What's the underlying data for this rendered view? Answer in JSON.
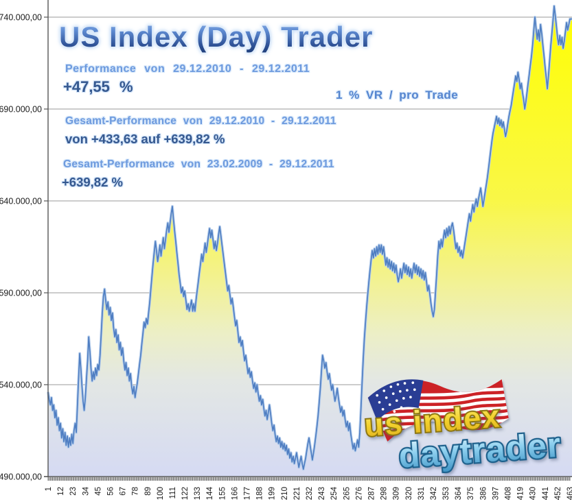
{
  "header": {
    "title": "US Index (Day) Trader",
    "performance_label": "Performance von 29.12.2010 - 29.12.2011",
    "performance_value": "+47,55 %",
    "risk_note": "1 % VR / pro Trade",
    "gesamt1_label": "Gesamt-Performance von 29.12.2010 - 29.12.2011",
    "gesamt1_value": "von +433,63 auf +639,82 %",
    "gesamt2_label": "Gesamt-Performance von 23.02.2009 - 29.12.2011",
    "gesamt2_value": "+639,82 %"
  },
  "logo": {
    "line1": "us index",
    "line2": "daytrader",
    "flag": "us-flag"
  },
  "colors": {
    "line": "#4f7ec2",
    "line_glow": "#b7cfec",
    "fill_top": "#ffff00",
    "fill_bottom": "#d5daf3",
    "grid": "#9a9a9a",
    "axis": "#555555",
    "tick_text": "#1a1a1a",
    "title_blue_dark": "#1d3c78",
    "title_blue_light": "#8fb2e6",
    "label_blue": "#6d9ade",
    "value_blue": "#35588f",
    "logo_gold": "#eec527",
    "logo_blue": "#6fbde4"
  },
  "chart_data": {
    "type": "area",
    "title": "US Index (Day) Trader",
    "xlabel": "",
    "ylabel": "",
    "grid": true,
    "legend": false,
    "x_start": 1,
    "x_end": 463,
    "x_tick_step": 11,
    "x_tick_labels": [
      "1",
      "12",
      "23",
      "34",
      "45",
      "56",
      "67",
      "78",
      "89",
      "100",
      "111",
      "122",
      "133",
      "144",
      "155",
      "166",
      "177",
      "188",
      "199",
      "210",
      "221",
      "232",
      "243",
      "254",
      "265",
      "276",
      "287",
      "298",
      "309",
      "320",
      "331",
      "342",
      "353",
      "364",
      "375",
      "386",
      "397",
      "408",
      "419",
      "430",
      "441",
      "452",
      "463"
    ],
    "y_tick_values": [
      740000,
      690000,
      640000,
      590000,
      540000,
      490000
    ],
    "y_tick_labels": [
      "740.000,00",
      "690.000,00",
      "640.000,00",
      "590.000,00",
      "540.000,00",
      "490.000,00"
    ],
    "ylim": [
      490000,
      749000
    ],
    "values_unit": "thousands",
    "unit_multiplier": 1000,
    "values": [
      536,
      532,
      529,
      533,
      526,
      529,
      522,
      526,
      518,
      522,
      515,
      519,
      511,
      516,
      509,
      514,
      507,
      512,
      506,
      511,
      507,
      513,
      508,
      515,
      519,
      514,
      529,
      543,
      557,
      549,
      539,
      531,
      526,
      533,
      543,
      553,
      566,
      558,
      549,
      542,
      547,
      543,
      549,
      545,
      551,
      548,
      556,
      567,
      579,
      588,
      592,
      586,
      581,
      585,
      578,
      582,
      575,
      579,
      571,
      566,
      570,
      563,
      567,
      559,
      563,
      556,
      560,
      553,
      548,
      552,
      545,
      549,
      542,
      546,
      539,
      535,
      539,
      533,
      537,
      541,
      546,
      551,
      556,
      562,
      568,
      574,
      571,
      576,
      573,
      579,
      585,
      592,
      599,
      606,
      612,
      618,
      613,
      607,
      611,
      616,
      610,
      615,
      620,
      614,
      619,
      624,
      628,
      623,
      628,
      633,
      637,
      630,
      624,
      618,
      612,
      606,
      600,
      595,
      590,
      593,
      588,
      591,
      586,
      581,
      584,
      580,
      583,
      586,
      580,
      584,
      580,
      586,
      591,
      596,
      601,
      606,
      611,
      607,
      612,
      617,
      612,
      616,
      621,
      625,
      620,
      624,
      619,
      614,
      618,
      613,
      617,
      622,
      626,
      621,
      616,
      611,
      606,
      601,
      596,
      591,
      594,
      589,
      584,
      587,
      582,
      577,
      572,
      575,
      569,
      563,
      566,
      561,
      564,
      558,
      553,
      556,
      551,
      546,
      549,
      544,
      547,
      542,
      538,
      541,
      536,
      540,
      535,
      531,
      534,
      529,
      532,
      527,
      523,
      526,
      521,
      525,
      529,
      524,
      519,
      515,
      518,
      513,
      509,
      512,
      508,
      511,
      506,
      509,
      505,
      508,
      504,
      507,
      502,
      505,
      500,
      503,
      498,
      501,
      497,
      500,
      503,
      499,
      495,
      498,
      501,
      497,
      494,
      497,
      500,
      504,
      508,
      511,
      507,
      503,
      499,
      503,
      507,
      512,
      517,
      523,
      530,
      538,
      547,
      556,
      553,
      549,
      552,
      547,
      543,
      546,
      541,
      537,
      540,
      535,
      531,
      534,
      538,
      533,
      529,
      525,
      528,
      523,
      526,
      521,
      517,
      520,
      515,
      519,
      513,
      509,
      505,
      508,
      504,
      507,
      510,
      506,
      514,
      527,
      541,
      554,
      565,
      574,
      582,
      589,
      596,
      602,
      608,
      613,
      609,
      614,
      610,
      615,
      611,
      616,
      612,
      616,
      611,
      615,
      610,
      605,
      609,
      604,
      608,
      603,
      607,
      602,
      606,
      601,
      605,
      600,
      596,
      599,
      603,
      598,
      602,
      606,
      601,
      605,
      600,
      604,
      599,
      603,
      598,
      602,
      606,
      601,
      605,
      600,
      604,
      599,
      603,
      598,
      602,
      597,
      601,
      596,
      591,
      594,
      589,
      584,
      580,
      577,
      581,
      590,
      600,
      610,
      618,
      614,
      619,
      615,
      620,
      624,
      620,
      625,
      621,
      626,
      622,
      626,
      628,
      624,
      619,
      614,
      617,
      612,
      615,
      610,
      613,
      609,
      613,
      617,
      621,
      625,
      629,
      633,
      629,
      634,
      638,
      634,
      638,
      641,
      637,
      641,
      644,
      647,
      642,
      637,
      641,
      645,
      649,
      653,
      658,
      663,
      668,
      673,
      677,
      680,
      683,
      686,
      682,
      685,
      681,
      684,
      680,
      683,
      679,
      675,
      678,
      682,
      686,
      689,
      692,
      696,
      700,
      704,
      708,
      705,
      710,
      706,
      701,
      704,
      699,
      695,
      690,
      694,
      699,
      704,
      709,
      714,
      719,
      725,
      733,
      740,
      734,
      728,
      733,
      727,
      736,
      731,
      725,
      719,
      713,
      707,
      701,
      708,
      716,
      724,
      731,
      738,
      746,
      741,
      735,
      729,
      725,
      730,
      725,
      729,
      723,
      727,
      732,
      737,
      733,
      736,
      739
    ]
  }
}
